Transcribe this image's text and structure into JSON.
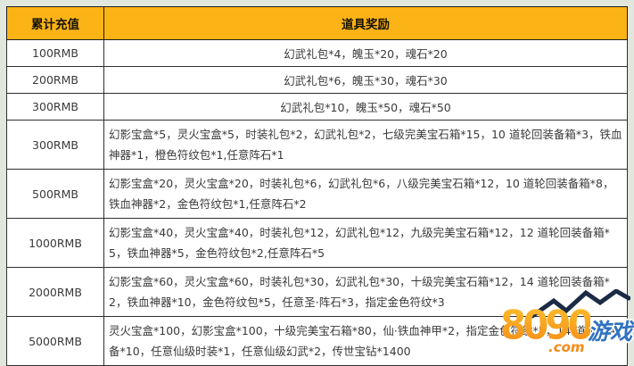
{
  "page": {
    "background_color": "#e2e7dd",
    "header_bg_color": "#fcb316",
    "border_color": "#2f2f2f",
    "cell_bg_color": "#ffffff"
  },
  "table": {
    "header": {
      "recharge": "累计充值",
      "reward": "道具奖励"
    },
    "rows": [
      {
        "recharge": "100RMB",
        "reward": "幻武礼包*4，魄玉*20，魂石*20"
      },
      {
        "recharge": "200RMB",
        "reward": "幻武礼包*6，魄玉*30，魂石*30"
      },
      {
        "recharge": "300RMB",
        "reward": "幻武礼包*10，魄玉*50，魂石*50"
      },
      {
        "recharge": "300RMB",
        "reward": "幻影宝盒*5，灵火宝盒*5，时装礼包*2，幻武礼包*2，七级完美宝石箱*15，10 道轮回装备箱*3，铁血神器*1，橙色符纹包*1,任意阵石*1"
      },
      {
        "recharge": "500RMB",
        "reward": "幻影宝盒*20，灵火宝盒*20，时装礼包*6，幻武礼包*6，八级完美宝石箱*12，10 道轮回装备箱*8，铁血神器*2，金色符纹包*1,任意阵石*2"
      },
      {
        "recharge": "1000RMB",
        "reward": "幻影宝盒*40，灵火宝盒*40，时装礼包*12，幻武礼包*12，九级完美宝石箱*12，12 道轮回装备箱*5，铁血神器*5，金色符纹包*2,任意阵石*5"
      },
      {
        "recharge": "2000RMB",
        "reward": "幻影宝盒*60，灵火宝盒*60，时装礼包*30，幻武礼包*30，十级完美宝石箱*12，14 道轮回装备箱*2，铁血神器*10，金色符纹包*5，任意圣·阵石*3，指定金色符纹*3"
      },
      {
        "recharge": "5000RMB",
        "reward": "灵火宝盒*100，幻影宝盒*100，十级完美宝石箱*80，仙·铁血神甲*2，指定金色符纹*5，14 道轮回装备*10，任意仙级时装*1，任意仙级幻武*2，传世宝钻*1400"
      }
    ]
  },
  "watermark": {
    "number": "8090",
    "text": "游戏",
    "domain": ".com",
    "number_color": "#f7941d",
    "text_color": "#2f72c0",
    "zigzag_color": "#1b2a45"
  }
}
